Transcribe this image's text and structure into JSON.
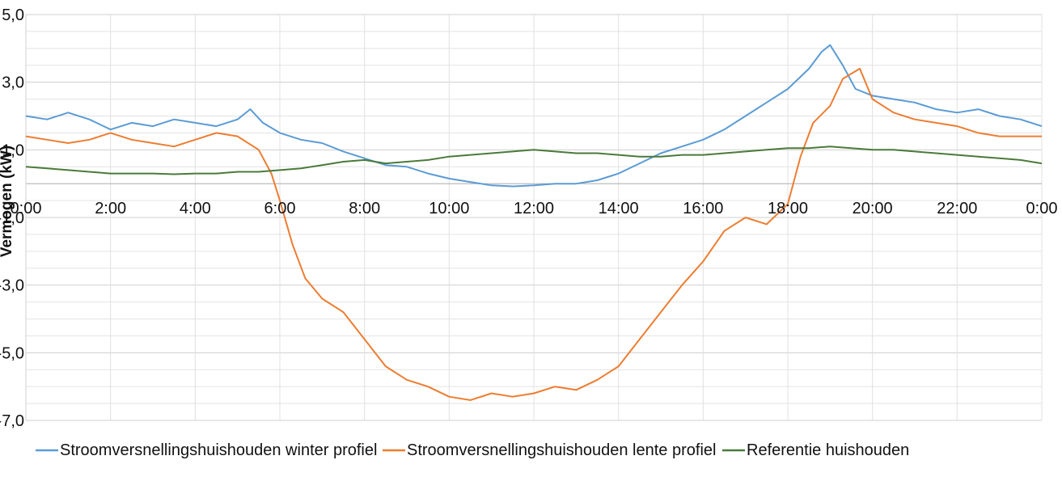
{
  "chart_data": {
    "type": "line",
    "title": "",
    "xlabel": "",
    "ylabel": "Vermogen (kW)",
    "ylim": [
      -7,
      5
    ],
    "xlim": [
      0,
      24
    ],
    "y_ticks": [
      5,
      3,
      1,
      -1,
      -3,
      -5,
      -7
    ],
    "y_tick_labels": [
      "5,0",
      "3,0",
      "1,0",
      "-1,0",
      "-3,0",
      "-5,0",
      "-7,0"
    ],
    "x_ticks": [
      0,
      2,
      4,
      6,
      8,
      10,
      12,
      14,
      16,
      18,
      20,
      22,
      24
    ],
    "x_tick_labels": [
      "0:00",
      "2:00",
      "4:00",
      "6:00",
      "8:00",
      "10:00",
      "12:00",
      "14:00",
      "16:00",
      "18:00",
      "20:00",
      "22:00",
      "0:00"
    ],
    "grid": true,
    "legend_position": "bottom",
    "series": [
      {
        "name": "Stroomversnellingshuishouden winter profiel",
        "color": "#5b9bd5",
        "x": [
          0,
          0.5,
          1,
          1.5,
          2,
          2.5,
          3,
          3.5,
          4,
          4.5,
          5,
          5.3,
          5.6,
          6,
          6.5,
          7,
          7.5,
          8,
          8.5,
          9,
          9.5,
          10,
          10.5,
          11,
          11.5,
          12,
          12.5,
          13,
          13.5,
          14,
          14.5,
          15,
          15.5,
          16,
          16.5,
          17,
          17.5,
          18,
          18.5,
          18.8,
          19,
          19.3,
          19.6,
          20,
          20.5,
          21,
          21.5,
          22,
          22.5,
          23,
          23.5,
          24
        ],
        "y": [
          2.0,
          1.9,
          2.1,
          1.9,
          1.6,
          1.8,
          1.7,
          1.9,
          1.8,
          1.7,
          1.9,
          2.2,
          1.8,
          1.5,
          1.3,
          1.2,
          0.95,
          0.75,
          0.55,
          0.5,
          0.3,
          0.15,
          0.05,
          -0.05,
          -0.08,
          -0.05,
          0.0,
          0.0,
          0.1,
          0.3,
          0.6,
          0.9,
          1.1,
          1.3,
          1.6,
          2.0,
          2.4,
          2.8,
          3.4,
          3.9,
          4.1,
          3.5,
          2.8,
          2.6,
          2.5,
          2.4,
          2.2,
          2.1,
          2.2,
          2.0,
          1.9,
          1.7
        ]
      },
      {
        "name": "Stroomversnellingshuishouden lente profiel",
        "color": "#ed7d31",
        "x": [
          0,
          0.5,
          1,
          1.5,
          2,
          2.5,
          3,
          3.5,
          4,
          4.5,
          5,
          5.5,
          5.8,
          6,
          6.3,
          6.6,
          7,
          7.5,
          8,
          8.5,
          9,
          9.5,
          10,
          10.5,
          11,
          11.5,
          12,
          12.5,
          13,
          13.5,
          14,
          14.5,
          15,
          15.5,
          16,
          16.5,
          17,
          17.5,
          18,
          18.3,
          18.6,
          19,
          19.3,
          19.7,
          20,
          20.5,
          21,
          21.5,
          22,
          22.5,
          23,
          23.5,
          24
        ],
        "y": [
          1.4,
          1.3,
          1.2,
          1.3,
          1.5,
          1.3,
          1.2,
          1.1,
          1.3,
          1.5,
          1.4,
          1.0,
          0.3,
          -0.5,
          -1.8,
          -2.8,
          -3.4,
          -3.8,
          -4.6,
          -5.4,
          -5.8,
          -6.0,
          -6.3,
          -6.4,
          -6.2,
          -6.3,
          -6.2,
          -6.0,
          -6.1,
          -5.8,
          -5.4,
          -4.6,
          -3.8,
          -3.0,
          -2.3,
          -1.4,
          -1.0,
          -1.2,
          -0.6,
          0.8,
          1.8,
          2.3,
          3.1,
          3.4,
          2.5,
          2.1,
          1.9,
          1.8,
          1.7,
          1.5,
          1.4,
          1.4,
          1.4
        ]
      },
      {
        "name": "Referentie huishouden",
        "color": "#4a7a3a",
        "x": [
          0,
          0.5,
          1,
          1.5,
          2,
          2.5,
          3,
          3.5,
          4,
          4.5,
          5,
          5.5,
          6,
          6.5,
          7,
          7.5,
          8,
          8.5,
          9,
          9.5,
          10,
          10.5,
          11,
          11.5,
          12,
          12.5,
          13,
          13.5,
          14,
          14.5,
          15,
          15.5,
          16,
          16.5,
          17,
          17.5,
          18,
          18.5,
          19,
          19.5,
          20,
          20.5,
          21,
          21.5,
          22,
          22.5,
          23,
          23.5,
          24
        ],
        "y": [
          0.5,
          0.45,
          0.4,
          0.35,
          0.3,
          0.3,
          0.3,
          0.28,
          0.3,
          0.3,
          0.35,
          0.35,
          0.4,
          0.45,
          0.55,
          0.65,
          0.7,
          0.6,
          0.65,
          0.7,
          0.8,
          0.85,
          0.9,
          0.95,
          1.0,
          0.95,
          0.9,
          0.9,
          0.85,
          0.8,
          0.8,
          0.85,
          0.85,
          0.9,
          0.95,
          1.0,
          1.05,
          1.05,
          1.1,
          1.05,
          1.0,
          1.0,
          0.95,
          0.9,
          0.85,
          0.8,
          0.75,
          0.7,
          0.6
        ]
      }
    ]
  }
}
